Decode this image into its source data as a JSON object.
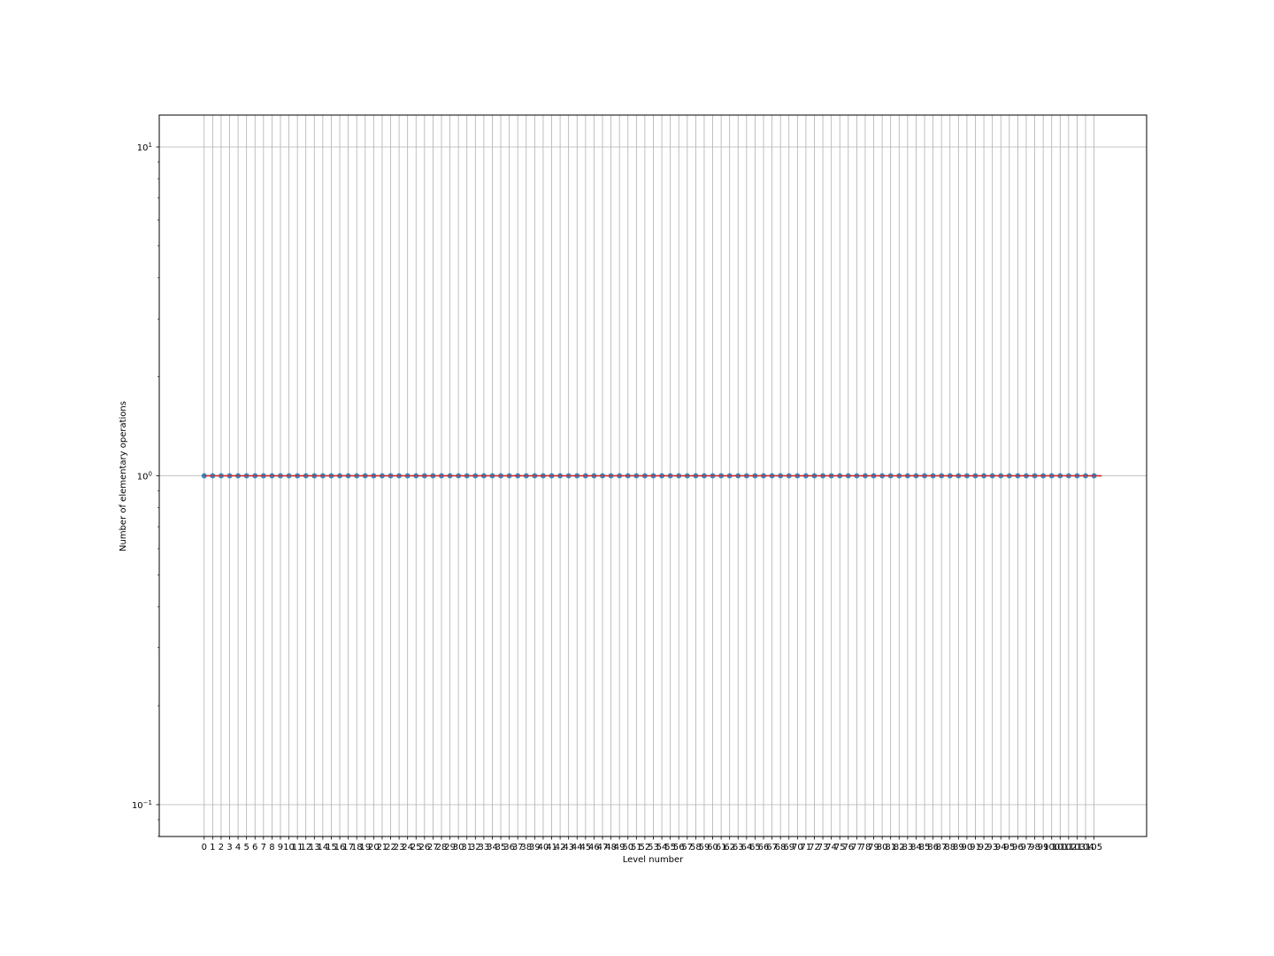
{
  "chart_data": {
    "type": "line",
    "title": "",
    "xlabel": "Level number",
    "ylabel": "Number of elementary operations",
    "yscale": "log",
    "ylim": [
      0.08,
      12.5
    ],
    "xlim": [
      -5.3,
      111.2
    ],
    "x_range": [
      0,
      105
    ],
    "y_ticks": [
      {
        "value": 10,
        "base": "10",
        "exp": "1"
      },
      {
        "value": 1,
        "base": "10",
        "exp": "0"
      },
      {
        "value": 0.1,
        "base": "10",
        "exp": "−1"
      }
    ],
    "grid": true,
    "series": [
      {
        "color": "#1f77b4",
        "marker": "circle",
        "constant_y": 1
      },
      {
        "color": "#d62728",
        "marker": "none",
        "constant_y": 1
      }
    ]
  },
  "colors": {
    "grid": "#b0b0b0",
    "axes": "#000000",
    "points": "#1f77b4",
    "fit_line": "#d62728"
  }
}
